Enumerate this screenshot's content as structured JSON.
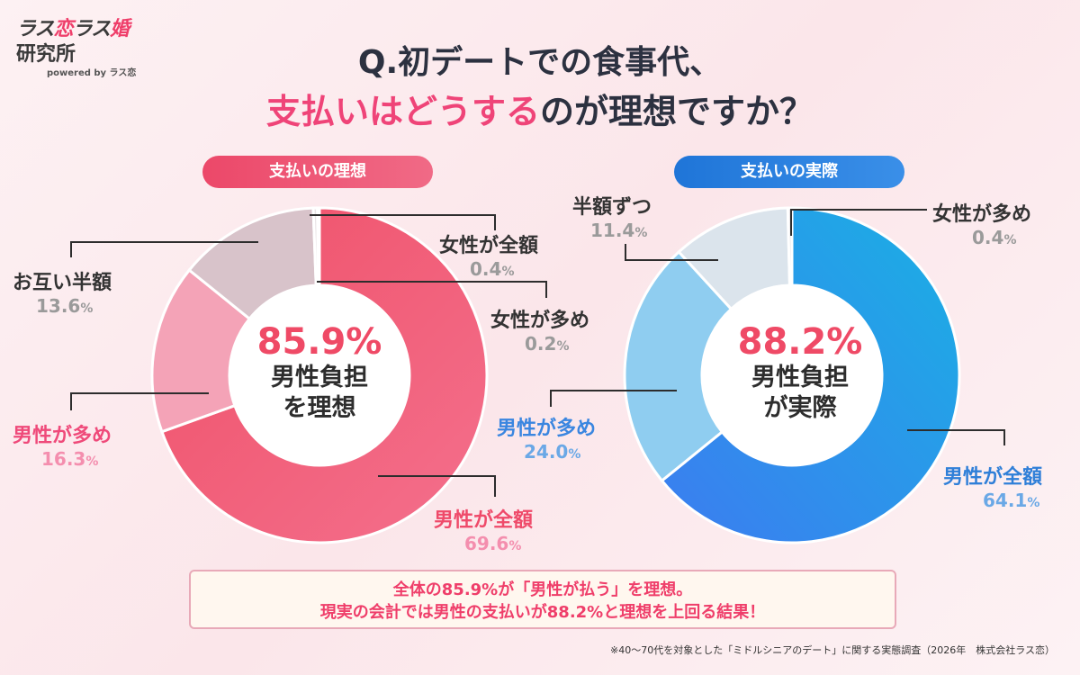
{
  "logo": {
    "line1a": "ラス",
    "line1b": "恋",
    "line1c": "ラス",
    "line1d": "婚",
    "line2": "研究所",
    "powered": "powered by ラス恋"
  },
  "title": {
    "line1": "Q.初デートでの食事代、",
    "line2_highlight": "支払いはどうする",
    "line2_rest": "のが理想ですか？"
  },
  "chart_data": [
    {
      "type": "pie",
      "title": "支払いの理想",
      "center_value": "85.9%",
      "center_text_line1": "男性負担",
      "center_text_line2": "を理想",
      "categories": [
        "男性が全額",
        "男性が多め",
        "お互い半額",
        "女性が全額",
        "女性が多め"
      ],
      "values": [
        69.6,
        16.3,
        13.6,
        0.4,
        0.2
      ],
      "colors": [
        "#f0556f",
        "#f4a3b7",
        "#d8c3ca",
        "#e9e4e6",
        "#e9e4e6"
      ]
    },
    {
      "type": "pie",
      "title": "支払いの実際",
      "center_value": "88.2%",
      "center_text_line1": "男性負担",
      "center_text_line2": "が実際",
      "categories": [
        "男性が全額",
        "男性が多め",
        "半額ずつ",
        "女性が多め"
      ],
      "values": [
        64.1,
        24.0,
        11.4,
        0.4
      ],
      "colors": [
        "#2e8fe0",
        "#8fcdf0",
        "#dbe4ec",
        "#e9e4e6"
      ]
    }
  ],
  "labels": {
    "left": [
      {
        "name": "女性が全額",
        "pct": "0.4",
        "unit": "%"
      },
      {
        "name": "女性が多め",
        "pct": "0.2",
        "unit": "%"
      },
      {
        "name": "お互い半額",
        "pct": "13.6",
        "unit": "%"
      },
      {
        "name": "男性が多め",
        "pct": "16.3",
        "unit": "%"
      },
      {
        "name": "男性が全額",
        "pct": "69.6",
        "unit": "%"
      }
    ],
    "right": [
      {
        "name": "半額ずつ",
        "pct": "11.4",
        "unit": "%"
      },
      {
        "name": "女性が多め",
        "pct": "0.4",
        "unit": "%"
      },
      {
        "name": "男性が多め",
        "pct": "24.0",
        "unit": "%"
      },
      {
        "name": "男性が全額",
        "pct": "64.1",
        "unit": "%"
      }
    ]
  },
  "summary": {
    "line1": "全体の85.9%が「男性が払う」を理想。",
    "line2": "現実の会計では男性の支払いが88.2%と理想を上回る結果！"
  },
  "footnote": "※40〜70代を対象とした「ミドルシニアのデート」に関する実態調査（2026年　株式会社ラス恋）"
}
